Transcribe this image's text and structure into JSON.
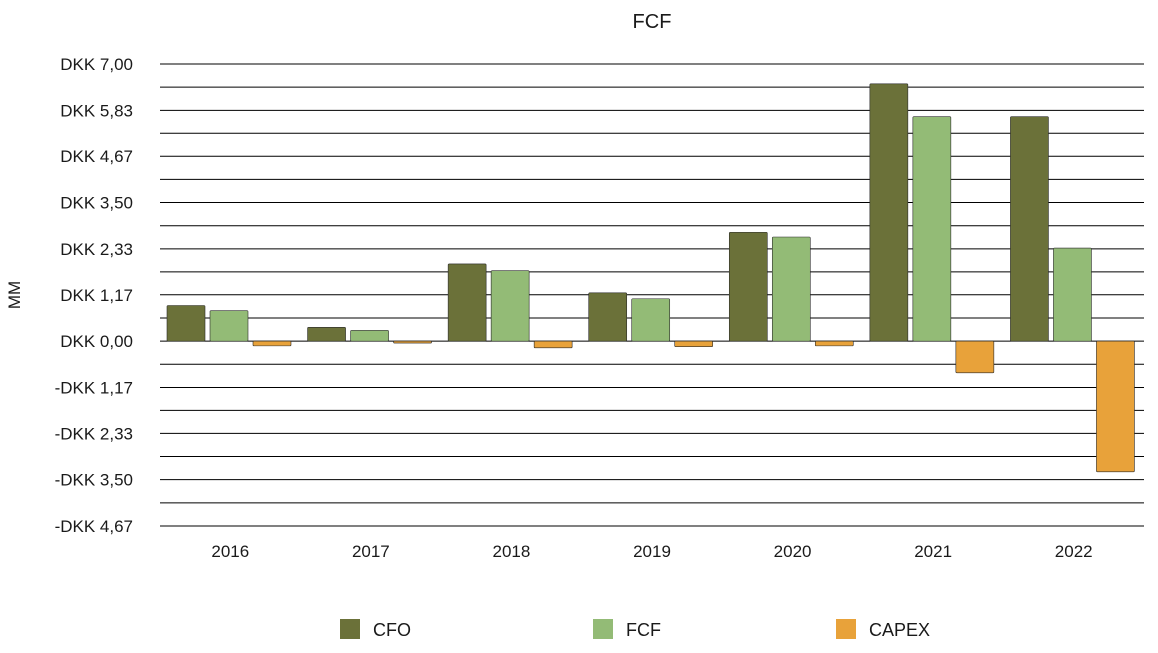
{
  "chart_data": {
    "type": "bar",
    "title": "FCF",
    "xlabel": "",
    "ylabel": "MM",
    "categories": [
      "2016",
      "2017",
      "2018",
      "2019",
      "2020",
      "2021",
      "2022"
    ],
    "series": [
      {
        "name": "CFO",
        "color": "#6b7139",
        "values": [
          0.9,
          0.35,
          1.95,
          1.22,
          2.75,
          6.5,
          5.67
        ]
      },
      {
        "name": "FCF",
        "color": "#93bb76",
        "values": [
          0.77,
          0.27,
          1.78,
          1.07,
          2.63,
          5.67,
          2.35
        ]
      },
      {
        "name": "CAPEX",
        "color": "#e8a23a",
        "values": [
          -0.12,
          -0.05,
          -0.17,
          -0.14,
          -0.12,
          -0.8,
          -3.3
        ]
      }
    ],
    "ylim": [
      -4.67,
      7.0
    ],
    "y_ticks": [
      7.0,
      5.83,
      4.67,
      3.5,
      2.33,
      1.17,
      0.0,
      -1.17,
      -2.33,
      -3.5,
      -4.67
    ],
    "y_tick_labels": [
      "DKK 7,00",
      "DKK 5,83",
      "DKK 4,67",
      "DKK 3,50",
      "DKK 2,33",
      "DKK 1,17",
      "DKK 0,00",
      "-DKK 1,17",
      "-DKK 2,33",
      "-DKK 3,50",
      "-DKK 4,67"
    ],
    "grid": true,
    "legend_position": "bottom"
  }
}
